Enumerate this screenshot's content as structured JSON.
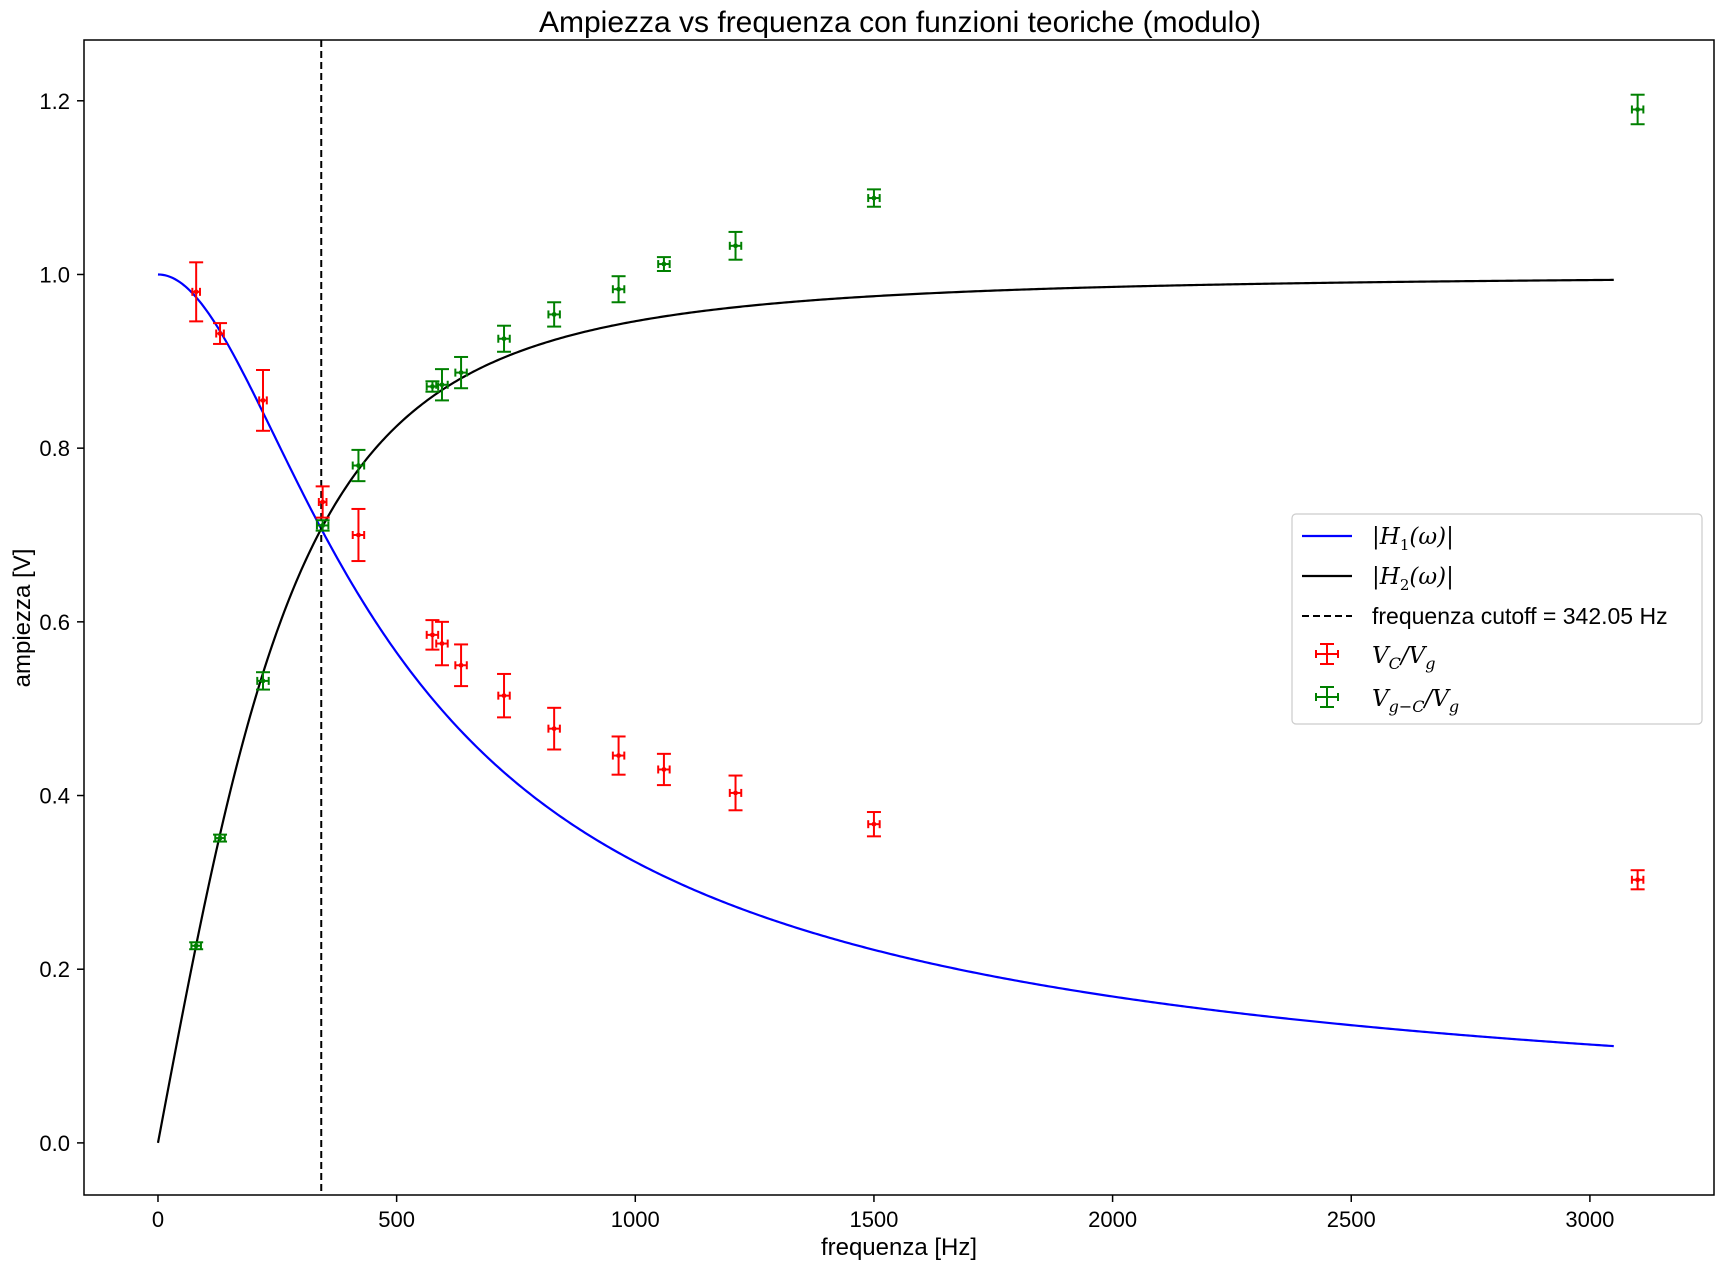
{
  "chart_data": {
    "type": "scatter",
    "title": "Ampiezza vs frequenza con funzioni teoriche (modulo)",
    "xlabel": "frequenza [Hz]",
    "ylabel": "ampiezza [V]",
    "xlim": [
      -155,
      3260
    ],
    "ylim": [
      -0.06,
      1.27
    ],
    "xticks": [
      0,
      500,
      1000,
      1500,
      2000,
      2500,
      3000
    ],
    "yticks": [
      0.0,
      0.2,
      0.4,
      0.6,
      0.8,
      1.0,
      1.2
    ],
    "grid": false,
    "legend_placement": "center-right",
    "cutoff_frequency": 342.05,
    "theory_x_max": 3050,
    "series": [
      {
        "name": "|H1(ω)|",
        "kind": "line",
        "formula": "1/sqrt(1+(f/fc)^2)",
        "color": "#0000ff"
      },
      {
        "name": "|H2(ω)|",
        "kind": "line",
        "formula": "(f/fc)/sqrt(1+(f/fc)^2)",
        "color": "#000000"
      },
      {
        "name": "frequenza cutoff = 342.05 Hz",
        "kind": "vline",
        "x": 342.05,
        "color": "#000000",
        "dash": true
      },
      {
        "name": "VC/Vg",
        "kind": "errorbar",
        "color": "#ff0000",
        "points": [
          {
            "x": 80,
            "y": 0.98,
            "yerr": 0.034,
            "xerr": 8
          },
          {
            "x": 130,
            "y": 0.932,
            "yerr": 0.012,
            "xerr": 8
          },
          {
            "x": 220,
            "y": 0.855,
            "yerr": 0.035,
            "xerr": 8
          },
          {
            "x": 345,
            "y": 0.738,
            "yerr": 0.018,
            "xerr": 8
          },
          {
            "x": 420,
            "y": 0.7,
            "yerr": 0.03,
            "xerr": 12
          },
          {
            "x": 575,
            "y": 0.585,
            "yerr": 0.017,
            "xerr": 12
          },
          {
            "x": 595,
            "y": 0.575,
            "yerr": 0.025,
            "xerr": 12
          },
          {
            "x": 635,
            "y": 0.55,
            "yerr": 0.024,
            "xerr": 12
          },
          {
            "x": 725,
            "y": 0.515,
            "yerr": 0.025,
            "xerr": 12
          },
          {
            "x": 830,
            "y": 0.477,
            "yerr": 0.024,
            "xerr": 12
          },
          {
            "x": 965,
            "y": 0.446,
            "yerr": 0.022,
            "xerr": 12
          },
          {
            "x": 1060,
            "y": 0.43,
            "yerr": 0.018,
            "xerr": 12
          },
          {
            "x": 1210,
            "y": 0.403,
            "yerr": 0.02,
            "xerr": 12
          },
          {
            "x": 1500,
            "y": 0.367,
            "yerr": 0.014,
            "xerr": 12
          },
          {
            "x": 3100,
            "y": 0.303,
            "yerr": 0.011,
            "xerr": 12
          }
        ]
      },
      {
        "name": "Vg-C/Vg",
        "kind": "errorbar",
        "color": "#008000",
        "points": [
          {
            "x": 80,
            "y": 0.227,
            "yerr": 0.004,
            "xerr": 10
          },
          {
            "x": 130,
            "y": 0.351,
            "yerr": 0.004,
            "xerr": 10
          },
          {
            "x": 220,
            "y": 0.532,
            "yerr": 0.01,
            "xerr": 12
          },
          {
            "x": 345,
            "y": 0.711,
            "yerr": 0.006,
            "xerr": 12
          },
          {
            "x": 420,
            "y": 0.78,
            "yerr": 0.018,
            "xerr": 12
          },
          {
            "x": 575,
            "y": 0.871,
            "yerr": 0.006,
            "xerr": 12
          },
          {
            "x": 595,
            "y": 0.873,
            "yerr": 0.018,
            "xerr": 12
          },
          {
            "x": 635,
            "y": 0.887,
            "yerr": 0.018,
            "xerr": 12
          },
          {
            "x": 725,
            "y": 0.926,
            "yerr": 0.015,
            "xerr": 12
          },
          {
            "x": 830,
            "y": 0.954,
            "yerr": 0.014,
            "xerr": 12
          },
          {
            "x": 965,
            "y": 0.983,
            "yerr": 0.015,
            "xerr": 12
          },
          {
            "x": 1060,
            "y": 1.012,
            "yerr": 0.008,
            "xerr": 12
          },
          {
            "x": 1210,
            "y": 1.033,
            "yerr": 0.016,
            "xerr": 12
          },
          {
            "x": 1500,
            "y": 1.088,
            "yerr": 0.01,
            "xerr": 12
          },
          {
            "x": 3100,
            "y": 1.19,
            "yerr": 0.017,
            "xerr": 12
          }
        ]
      }
    ],
    "legend": [
      {
        "label": "|H1(ω)|",
        "marker": "line",
        "color": "#0000ff"
      },
      {
        "label": "|H2(ω)|",
        "marker": "line",
        "color": "#000000"
      },
      {
        "label": "frequenza cutoff = 342.05 Hz",
        "marker": "dashed",
        "color": "#000000"
      },
      {
        "label": "VC/Vg",
        "marker": "errorbar",
        "color": "#ff0000"
      },
      {
        "label": "Vg-C/Vg",
        "marker": "errorbar",
        "color": "#008000"
      }
    ]
  }
}
